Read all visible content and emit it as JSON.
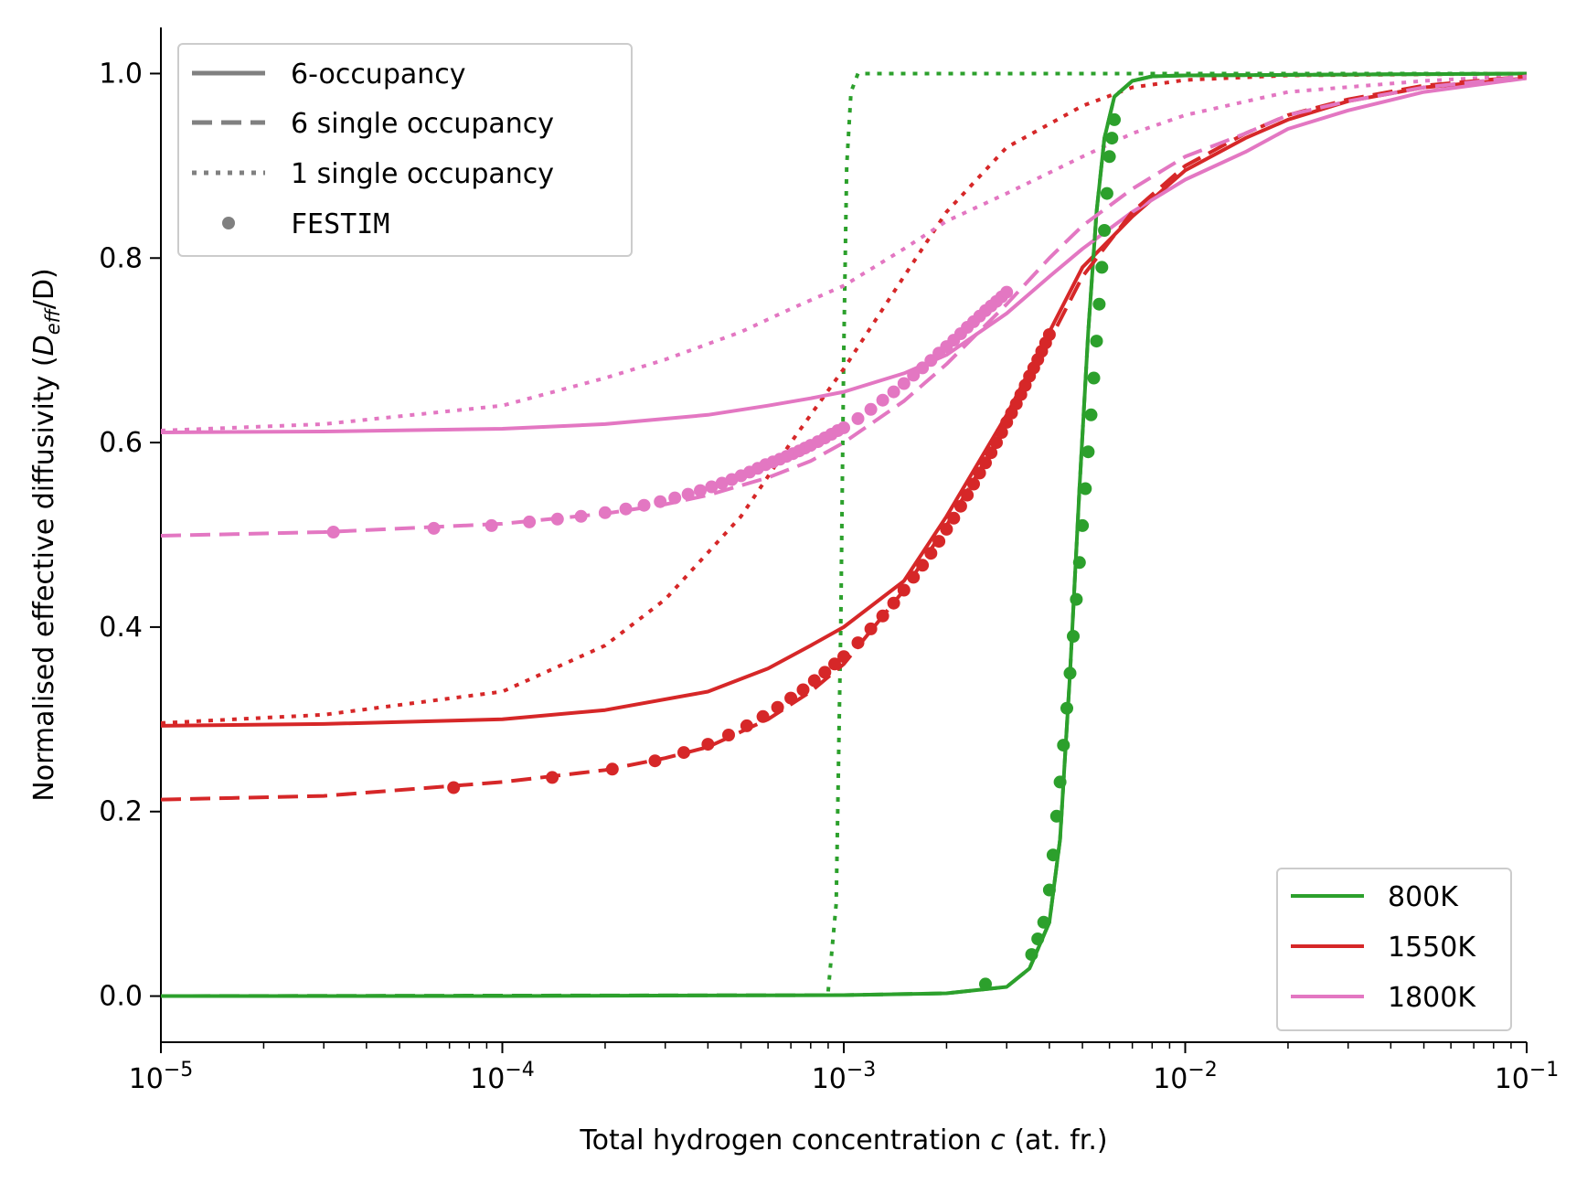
{
  "chart_data": {
    "type": "line",
    "xscale": "log",
    "xlim": [
      1e-05,
      0.1
    ],
    "ylim": [
      -0.05,
      1.05
    ],
    "xlabel_prefix": "Total hydrogen concentration ",
    "xlabel_var": "c",
    "xlabel_suffix": " (at. fr.)",
    "ylabel_prefix": "Normalised effective diffusivity (",
    "ylabel_var": "D",
    "ylabel_sub": "eff",
    "ylabel_suffix": "/D)",
    "x_tick_labels": [
      {
        "base": "10",
        "exp": "−5",
        "value": 1e-05
      },
      {
        "base": "10",
        "exp": "−4",
        "value": 0.0001
      },
      {
        "base": "10",
        "exp": "−3",
        "value": 0.001
      },
      {
        "base": "10",
        "exp": "−2",
        "value": 0.01
      },
      {
        "base": "10",
        "exp": "−1",
        "value": 0.1
      }
    ],
    "y_tick_labels": [
      {
        "label": "0.0",
        "value": 0.0
      },
      {
        "label": "0.2",
        "value": 0.2
      },
      {
        "label": "0.4",
        "value": 0.4
      },
      {
        "label": "0.6",
        "value": 0.6
      },
      {
        "label": "0.8",
        "value": 0.8
      },
      {
        "label": "1.0",
        "value": 1.0
      }
    ],
    "style_legend": [
      {
        "label": "6-occupancy",
        "style": "solid"
      },
      {
        "label": "6 single occupancy",
        "style": "dashed"
      },
      {
        "label": "1 single occupancy",
        "style": "dotted"
      },
      {
        "label": "FESTIM",
        "style": "marker"
      }
    ],
    "temperature_legend": [
      {
        "label": "800K",
        "color": "#2ca02c"
      },
      {
        "label": "1550K",
        "color": "#d62728"
      },
      {
        "label": "1800K",
        "color": "#e377c2"
      }
    ],
    "legend_style_color": "#808080",
    "series": [
      {
        "name": "800K 6-occupancy",
        "color": "#2ca02c",
        "style": "solid",
        "x": [
          1e-05,
          0.0001,
          0.001,
          0.002,
          0.003,
          0.0035,
          0.004,
          0.0043,
          0.0046,
          0.0049,
          0.0052,
          0.0055,
          0.0058,
          0.0062,
          0.007,
          0.008,
          0.01,
          0.1
        ],
        "y": [
          0.0,
          0.0,
          0.001,
          0.003,
          0.01,
          0.03,
          0.08,
          0.17,
          0.35,
          0.55,
          0.72,
          0.85,
          0.93,
          0.975,
          0.992,
          0.997,
          0.998,
          1.0
        ]
      },
      {
        "name": "800K 6 single occupancy",
        "color": "#2ca02c",
        "style": "dashed",
        "x": [
          1e-05,
          0.001,
          0.002,
          0.003,
          0.0035,
          0.004,
          0.0043,
          0.0046,
          0.0049,
          0.0052,
          0.0055,
          0.0058,
          0.0062,
          0.007,
          0.008,
          0.01,
          0.1
        ],
        "y": [
          0.0,
          0.001,
          0.003,
          0.01,
          0.03,
          0.08,
          0.17,
          0.35,
          0.55,
          0.72,
          0.85,
          0.93,
          0.975,
          0.992,
          0.997,
          0.998,
          1.0
        ]
      },
      {
        "name": "800K 1 single occupancy",
        "color": "#2ca02c",
        "style": "dotted",
        "x": [
          0.0009,
          0.00095,
          0.00098,
          0.001,
          0.00102,
          0.00105,
          0.0011,
          0.002,
          0.01,
          0.1
        ],
        "y": [
          0.005,
          0.1,
          0.4,
          0.7,
          0.9,
          0.98,
          1.0,
          1.0,
          1.0,
          1.0
        ]
      },
      {
        "name": "800K FESTIM",
        "color": "#2ca02c",
        "style": "marker",
        "x": [
          0.0026,
          0.00355,
          0.0037,
          0.00385,
          0.004,
          0.0041,
          0.0042,
          0.0043,
          0.0044,
          0.0045,
          0.0046,
          0.0047,
          0.0048,
          0.0049,
          0.005,
          0.0051,
          0.0052,
          0.0053,
          0.0054,
          0.0055,
          0.0056,
          0.0057,
          0.0058,
          0.0059,
          0.006,
          0.0061,
          0.0062
        ],
        "y": [
          0.013,
          0.045,
          0.062,
          0.08,
          0.115,
          0.153,
          0.195,
          0.232,
          0.272,
          0.312,
          0.35,
          0.39,
          0.43,
          0.47,
          0.51,
          0.55,
          0.59,
          0.63,
          0.67,
          0.71,
          0.75,
          0.79,
          0.83,
          0.87,
          0.91,
          0.93,
          0.95
        ]
      },
      {
        "name": "1550K 6-occupancy",
        "color": "#d62728",
        "style": "solid",
        "x": [
          1e-05,
          3e-05,
          0.0001,
          0.0002,
          0.0004,
          0.0006,
          0.0008,
          0.001,
          0.0015,
          0.002,
          0.003,
          0.004,
          0.005,
          0.007,
          0.01,
          0.015,
          0.02,
          0.03,
          0.05,
          0.1
        ],
        "y": [
          0.293,
          0.295,
          0.3,
          0.31,
          0.33,
          0.355,
          0.38,
          0.4,
          0.45,
          0.52,
          0.63,
          0.72,
          0.79,
          0.845,
          0.895,
          0.93,
          0.95,
          0.97,
          0.985,
          0.995
        ]
      },
      {
        "name": "1550K 6 single occupancy",
        "color": "#d62728",
        "style": "dashed",
        "x": [
          1e-05,
          3e-05,
          0.0001,
          0.0002,
          0.0003,
          0.0004,
          0.0006,
          0.0008,
          0.001,
          0.0015,
          0.002,
          0.0025,
          0.003,
          0.004,
          0.005,
          0.007,
          0.01,
          0.015,
          0.02,
          0.03,
          0.05,
          0.1
        ],
        "y": [
          0.213,
          0.217,
          0.232,
          0.245,
          0.258,
          0.27,
          0.3,
          0.33,
          0.36,
          0.44,
          0.51,
          0.57,
          0.62,
          0.71,
          0.78,
          0.85,
          0.9,
          0.935,
          0.955,
          0.972,
          0.987,
          0.997
        ]
      },
      {
        "name": "1550K 1 single occupancy",
        "color": "#d62728",
        "style": "dotted",
        "x": [
          1e-05,
          3e-05,
          0.0001,
          0.0002,
          0.0003,
          0.0005,
          0.0007,
          0.001,
          0.0015,
          0.002,
          0.003,
          0.005,
          0.007,
          0.01,
          0.02,
          0.1
        ],
        "y": [
          0.296,
          0.305,
          0.33,
          0.38,
          0.43,
          0.52,
          0.6,
          0.68,
          0.78,
          0.85,
          0.92,
          0.965,
          0.985,
          0.993,
          0.998,
          1.0
        ]
      },
      {
        "name": "1550K FESTIM",
        "color": "#d62728",
        "style": "marker",
        "x": [
          7.2e-05,
          0.00014,
          0.00021,
          0.00028,
          0.00034,
          0.0004,
          0.00046,
          0.00052,
          0.00058,
          0.00064,
          0.0007,
          0.00076,
          0.00082,
          0.00088,
          0.00094,
          0.001,
          0.0011,
          0.0012,
          0.0013,
          0.0014,
          0.0015,
          0.0016,
          0.0017,
          0.0018,
          0.0019,
          0.002,
          0.0021,
          0.0022,
          0.0023,
          0.0024,
          0.0025,
          0.0026,
          0.0027,
          0.0028,
          0.0029,
          0.003,
          0.0031,
          0.0032,
          0.0033,
          0.0034,
          0.0035,
          0.0036,
          0.0037,
          0.0038,
          0.0039,
          0.004
        ],
        "y": [
          0.226,
          0.237,
          0.246,
          0.255,
          0.264,
          0.273,
          0.283,
          0.293,
          0.303,
          0.313,
          0.323,
          0.332,
          0.342,
          0.351,
          0.36,
          0.368,
          0.383,
          0.398,
          0.412,
          0.426,
          0.44,
          0.454,
          0.467,
          0.48,
          0.493,
          0.506,
          0.518,
          0.531,
          0.543,
          0.555,
          0.567,
          0.578,
          0.589,
          0.6,
          0.611,
          0.622,
          0.632,
          0.642,
          0.652,
          0.662,
          0.672,
          0.681,
          0.69,
          0.699,
          0.708,
          0.717
        ]
      },
      {
        "name": "1800K 6-occupancy",
        "color": "#e377c2",
        "style": "solid",
        "x": [
          1e-05,
          3e-05,
          0.0001,
          0.0002,
          0.0004,
          0.0006,
          0.0008,
          0.001,
          0.0015,
          0.002,
          0.003,
          0.004,
          0.005,
          0.007,
          0.01,
          0.015,
          0.02,
          0.03,
          0.05,
          0.1
        ],
        "y": [
          0.611,
          0.612,
          0.615,
          0.62,
          0.63,
          0.64,
          0.648,
          0.655,
          0.675,
          0.695,
          0.74,
          0.78,
          0.81,
          0.85,
          0.885,
          0.915,
          0.94,
          0.96,
          0.98,
          0.995
        ]
      },
      {
        "name": "1800K 6 single occupancy",
        "color": "#e377c2",
        "style": "dashed",
        "x": [
          1e-05,
          3e-05,
          0.0001,
          0.0002,
          0.0003,
          0.0004,
          0.0006,
          0.0008,
          0.001,
          0.0015,
          0.002,
          0.003,
          0.004,
          0.005,
          0.007,
          0.01,
          0.015,
          0.02,
          0.03,
          0.05,
          0.1
        ],
        "y": [
          0.499,
          0.503,
          0.512,
          0.523,
          0.533,
          0.543,
          0.562,
          0.58,
          0.6,
          0.645,
          0.685,
          0.75,
          0.8,
          0.835,
          0.875,
          0.91,
          0.935,
          0.955,
          0.97,
          0.985,
          0.997
        ]
      },
      {
        "name": "1800K 1 single occupancy",
        "color": "#e377c2",
        "style": "dotted",
        "x": [
          1e-05,
          3e-05,
          0.0001,
          0.0002,
          0.0003,
          0.0005,
          0.0007,
          0.001,
          0.0015,
          0.002,
          0.003,
          0.005,
          0.007,
          0.01,
          0.02,
          0.05,
          0.1
        ],
        "y": [
          0.613,
          0.62,
          0.64,
          0.67,
          0.69,
          0.72,
          0.745,
          0.77,
          0.81,
          0.84,
          0.87,
          0.91,
          0.935,
          0.955,
          0.98,
          0.992,
          0.998
        ]
      },
      {
        "name": "1800K FESTIM",
        "color": "#e377c2",
        "style": "marker",
        "x": [
          3.2e-05,
          6.3e-05,
          9.3e-05,
          0.00012,
          0.000145,
          0.00017,
          0.0002,
          0.00023,
          0.00026,
          0.00029,
          0.00032,
          0.00035,
          0.00038,
          0.00041,
          0.00044,
          0.00047,
          0.0005,
          0.00053,
          0.00056,
          0.00059,
          0.00062,
          0.00065,
          0.00068,
          0.00071,
          0.00074,
          0.00077,
          0.0008,
          0.00084,
          0.00088,
          0.00092,
          0.00096,
          0.001,
          0.0011,
          0.0012,
          0.0013,
          0.0014,
          0.0015,
          0.0016,
          0.0017,
          0.0018,
          0.0019,
          0.002,
          0.0021,
          0.0022,
          0.0023,
          0.0024,
          0.0025,
          0.0026,
          0.0027,
          0.0028,
          0.0029,
          0.003
        ],
        "y": [
          0.503,
          0.507,
          0.51,
          0.514,
          0.517,
          0.52,
          0.524,
          0.528,
          0.532,
          0.536,
          0.54,
          0.544,
          0.548,
          0.552,
          0.556,
          0.56,
          0.564,
          0.568,
          0.572,
          0.576,
          0.579,
          0.582,
          0.585,
          0.588,
          0.591,
          0.594,
          0.597,
          0.601,
          0.605,
          0.609,
          0.613,
          0.616,
          0.626,
          0.636,
          0.646,
          0.655,
          0.664,
          0.673,
          0.681,
          0.689,
          0.697,
          0.704,
          0.711,
          0.718,
          0.725,
          0.731,
          0.737,
          0.743,
          0.748,
          0.753,
          0.758,
          0.763
        ]
      }
    ]
  }
}
